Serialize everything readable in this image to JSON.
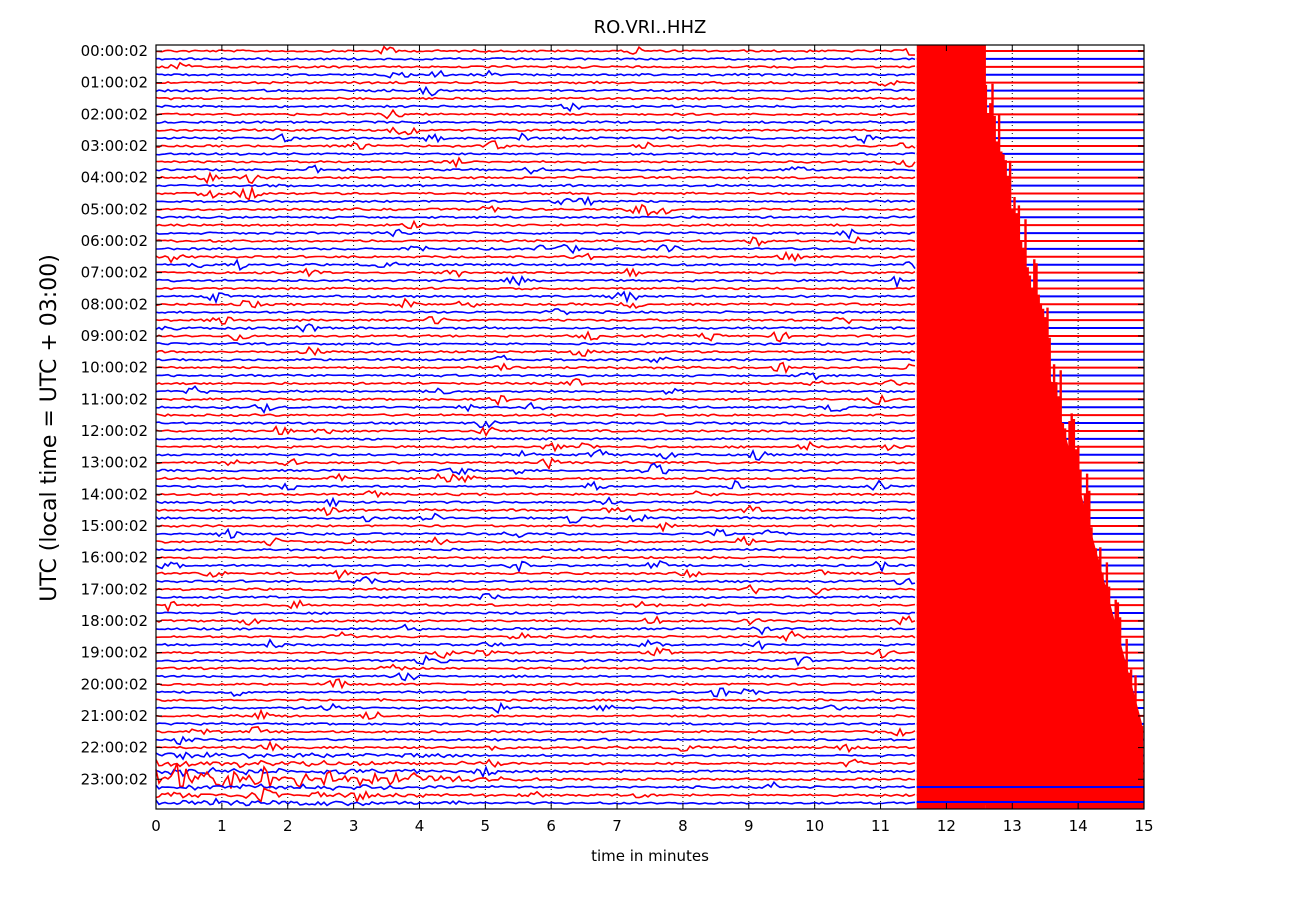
{
  "chart_data": {
    "type": "line",
    "title": "RO.VRI..HHZ",
    "xlabel": "time in minutes",
    "ylabel": "UTC (local time = UTC + 03:00)",
    "xlim": [
      0,
      15
    ],
    "x_ticks": [
      0,
      1,
      2,
      3,
      4,
      5,
      6,
      7,
      8,
      9,
      10,
      11,
      12,
      13,
      14,
      15
    ],
    "y_tick_labels": [
      "00:00:02",
      "01:00:02",
      "02:00:02",
      "03:00:02",
      "04:00:02",
      "05:00:02",
      "06:00:02",
      "07:00:02",
      "08:00:02",
      "09:00:02",
      "10:00:02",
      "11:00:02",
      "12:00:02",
      "13:00:02",
      "14:00:02",
      "15:00:02",
      "16:00:02",
      "17:00:02",
      "18:00:02",
      "19:00:02",
      "20:00:02",
      "21:00:02",
      "22:00:02",
      "23:00:02"
    ],
    "trace_rows_per_hour": 4,
    "trace_count": 96,
    "trace_colors": [
      "#ff0000",
      "#0000ff"
    ],
    "grid": "vertical dotted lines at each minute",
    "events": [
      {
        "description": "large saturated event",
        "start_minute": 11.55,
        "end_minute": 15,
        "rows_affected_from": 0,
        "rows_affected_to": 95,
        "color": "#ff0000"
      },
      {
        "description": "strong noise in final hour",
        "start_minute": 0,
        "end_minute": 6,
        "row": 92,
        "color": "#0000ff"
      }
    ]
  }
}
